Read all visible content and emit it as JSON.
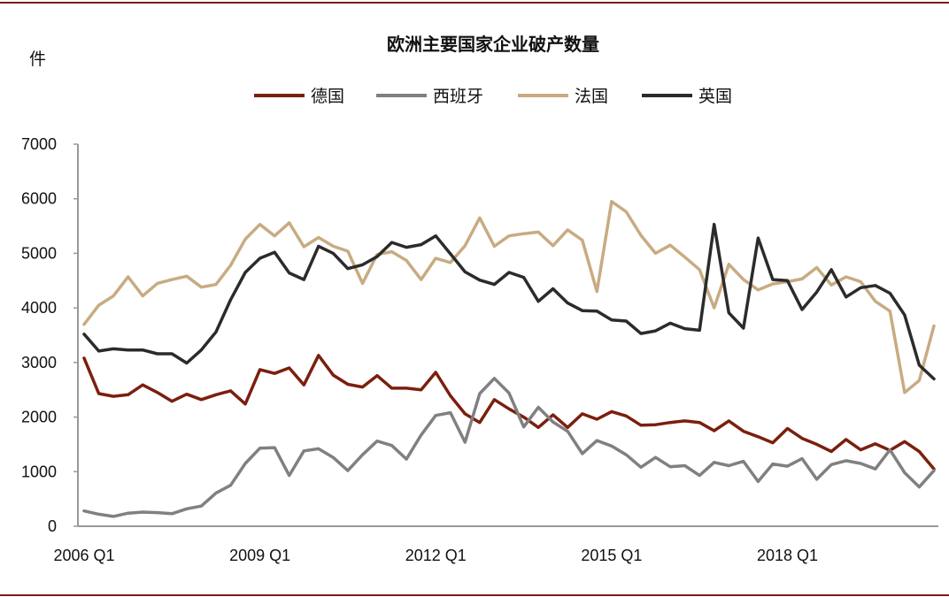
{
  "chart_data": {
    "type": "line",
    "title": "欧洲主要国家企业破产数量",
    "unit_label": "件",
    "xlabel": "",
    "ylabel": "",
    "ylim": [
      0,
      7000
    ],
    "yticks": [
      0,
      1000,
      2000,
      3000,
      4000,
      5000,
      6000,
      7000
    ],
    "grid": false,
    "legend_position": "top-center",
    "x_start": "2006 Q1",
    "x_tick_labels": [
      {
        "index": 0,
        "label": "2006 Q1"
      },
      {
        "index": 12,
        "label": "2009 Q1"
      },
      {
        "index": 24,
        "label": "2012 Q1"
      },
      {
        "index": 36,
        "label": "2015 Q1"
      },
      {
        "index": 48,
        "label": "2018 Q1"
      }
    ],
    "series": [
      {
        "name": "德国",
        "color": "#7b1f0e",
        "values": [
          3080,
          2430,
          2380,
          2410,
          2590,
          2450,
          2290,
          2420,
          2320,
          2410,
          2480,
          2240,
          2870,
          2800,
          2900,
          2590,
          3130,
          2770,
          2600,
          2550,
          2760,
          2530,
          2530,
          2500,
          2820,
          2390,
          2060,
          1900,
          2320,
          2150,
          2000,
          1810,
          2040,
          1810,
          2060,
          1960,
          2100,
          2020,
          1850,
          1860,
          1900,
          1930,
          1900,
          1750,
          1930,
          1740,
          1640,
          1530,
          1790,
          1610,
          1500,
          1370,
          1590,
          1400,
          1510,
          1390,
          1550,
          1370,
          1050
        ]
      },
      {
        "name": "西班牙",
        "color": "#808080",
        "values": [
          280,
          220,
          180,
          240,
          260,
          250,
          230,
          320,
          370,
          610,
          750,
          1150,
          1430,
          1440,
          930,
          1380,
          1420,
          1260,
          1020,
          1310,
          1560,
          1480,
          1230,
          1670,
          2030,
          2080,
          1540,
          2430,
          2710,
          2440,
          1820,
          2180,
          1910,
          1740,
          1330,
          1570,
          1470,
          1310,
          1080,
          1260,
          1090,
          1110,
          930,
          1170,
          1110,
          1190,
          820,
          1140,
          1100,
          1240,
          860,
          1130,
          1200,
          1150,
          1050,
          1400,
          980,
          720,
          1020
        ]
      },
      {
        "name": "法国",
        "color": "#c8ab82",
        "values": [
          3700,
          4050,
          4220,
          4570,
          4220,
          4450,
          4520,
          4580,
          4380,
          4430,
          4780,
          5260,
          5530,
          5320,
          5560,
          5120,
          5290,
          5130,
          5040,
          4450,
          4980,
          5030,
          4870,
          4520,
          4910,
          4830,
          5140,
          5650,
          5130,
          5320,
          5360,
          5390,
          5140,
          5430,
          5240,
          4300,
          5950,
          5760,
          5330,
          5000,
          5150,
          4930,
          4700,
          4000,
          4800,
          4520,
          4330,
          4440,
          4480,
          4530,
          4740,
          4420,
          4570,
          4480,
          4120,
          3940,
          2450,
          2670,
          3670
        ]
      },
      {
        "name": "英国",
        "color": "#2b2b2b",
        "values": [
          3520,
          3210,
          3250,
          3230,
          3230,
          3160,
          3160,
          2990,
          3230,
          3560,
          4150,
          4650,
          4910,
          5020,
          4640,
          4520,
          5130,
          5000,
          4720,
          4790,
          4940,
          5200,
          5110,
          5160,
          5320,
          4990,
          4660,
          4510,
          4430,
          4650,
          4560,
          4120,
          4350,
          4090,
          3950,
          3940,
          3780,
          3760,
          3530,
          3580,
          3720,
          3620,
          3590,
          5530,
          3910,
          3630,
          5280,
          4520,
          4500,
          3970,
          4290,
          4700,
          4200,
          4370,
          4410,
          4270,
          3870,
          2950,
          2700
        ]
      }
    ]
  }
}
